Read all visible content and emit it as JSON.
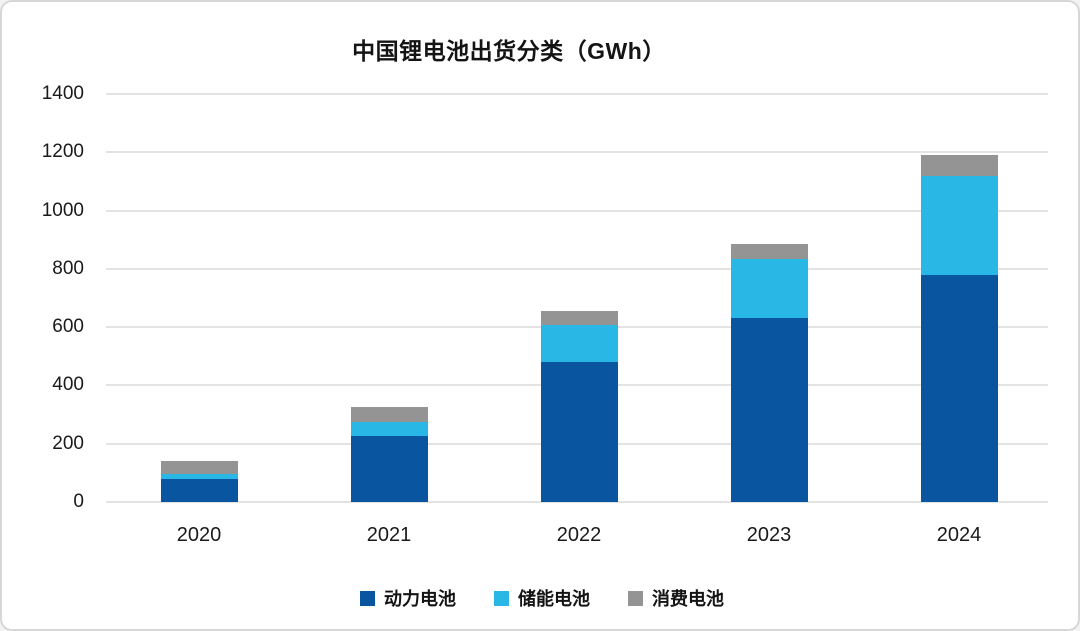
{
  "window": {
    "background": "#ffffff",
    "border_color": "#d7d7d7"
  },
  "chart_data": {
    "type": "bar",
    "stacked": true,
    "title": "中国锂电池出货分类（GWh）",
    "categories": [
      "2020",
      "2021",
      "2022",
      "2023",
      "2024"
    ],
    "series": [
      {
        "name": "动力电池",
        "color": "#0A55A0",
        "values": [
          80,
          226,
          480,
          630,
          780
        ]
      },
      {
        "name": "储能电池",
        "color": "#29B8E5",
        "values": [
          16,
          48,
          128,
          203,
          340
        ]
      },
      {
        "name": "消费电池",
        "color": "#949494",
        "values": [
          46,
          53,
          47,
          52,
          70
        ]
      }
    ],
    "totals": [
      142,
      327,
      655,
      885,
      1190
    ],
    "xlabel": "",
    "ylabel": "",
    "ylim": [
      0,
      1400
    ],
    "y_ticks": [
      0,
      200,
      400,
      600,
      800,
      1000,
      1200,
      1400
    ],
    "grid": true,
    "gridline_color": "#e3e3e3",
    "legend_position": "bottom",
    "text_color": "#1a1a1a"
  }
}
